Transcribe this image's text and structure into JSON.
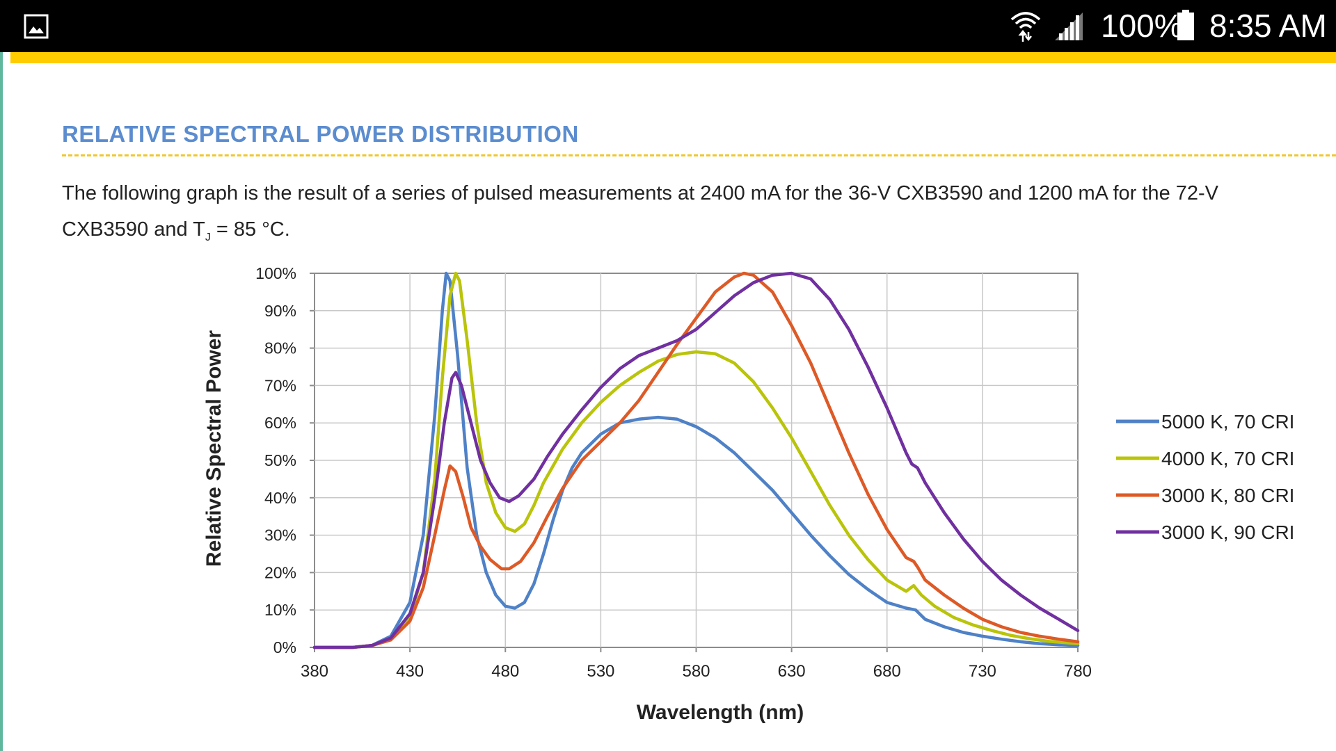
{
  "status_bar": {
    "battery": "100%",
    "time": "8:35 AM",
    "icons": [
      "gallery-icon",
      "wifi-icon",
      "signal-icon",
      "battery-icon"
    ]
  },
  "colors": {
    "accent": "#ffcc00",
    "title": "#5b8ccf",
    "rule": "#f0c62a"
  },
  "section": {
    "title": "RELATIVE SPECTRAL POWER DISTRIBUTION",
    "text_line1": "The following graph is the result of a series of pulsed measurements at 2400 mA for the 36-V CXB3590 and 1200 mA for the 72-V",
    "text_line2_pre": "CXB3590 and T",
    "text_line2_sub": "J",
    "text_line2_post": " = 85 °C."
  },
  "chart_data": {
    "type": "line",
    "xlabel": "Wavelength (nm)",
    "ylabel": "Relative Spectral Power",
    "xlim": [
      380,
      780
    ],
    "ylim": [
      0,
      100
    ],
    "x_ticks": [
      "380",
      "430",
      "480",
      "530",
      "580",
      "630",
      "680",
      "730",
      "780"
    ],
    "y_ticks": [
      "0%",
      "10%",
      "20%",
      "30%",
      "40%",
      "50%",
      "60%",
      "70%",
      "80%",
      "90%",
      "100%"
    ],
    "grid": true,
    "legend_position": "right",
    "series": [
      {
        "name": "5000 K, 70 CRI",
        "color": "#4f81c7",
        "points": [
          [
            380,
            0
          ],
          [
            400,
            0
          ],
          [
            410,
            0.5
          ],
          [
            420,
            3
          ],
          [
            430,
            12
          ],
          [
            437,
            30
          ],
          [
            443,
            62
          ],
          [
            447,
            90
          ],
          [
            449,
            100
          ],
          [
            451,
            98
          ],
          [
            455,
            78
          ],
          [
            460,
            48
          ],
          [
            465,
            30
          ],
          [
            470,
            20
          ],
          [
            475,
            14
          ],
          [
            480,
            11
          ],
          [
            485,
            10.5
          ],
          [
            490,
            12
          ],
          [
            495,
            17
          ],
          [
            500,
            25
          ],
          [
            505,
            34
          ],
          [
            510,
            42
          ],
          [
            515,
            48
          ],
          [
            520,
            52
          ],
          [
            530,
            57
          ],
          [
            540,
            60
          ],
          [
            550,
            61
          ],
          [
            560,
            61.5
          ],
          [
            570,
            61
          ],
          [
            580,
            59
          ],
          [
            590,
            56
          ],
          [
            600,
            52
          ],
          [
            610,
            47
          ],
          [
            620,
            42
          ],
          [
            630,
            36
          ],
          [
            640,
            30
          ],
          [
            650,
            24.5
          ],
          [
            660,
            19.5
          ],
          [
            670,
            15.5
          ],
          [
            680,
            12
          ],
          [
            690,
            10.5
          ],
          [
            695,
            10
          ],
          [
            700,
            7.5
          ],
          [
            710,
            5.5
          ],
          [
            720,
            4
          ],
          [
            730,
            3
          ],
          [
            740,
            2.2
          ],
          [
            750,
            1.5
          ],
          [
            760,
            1
          ],
          [
            770,
            0.7
          ],
          [
            780,
            0.5
          ]
        ]
      },
      {
        "name": "4000 K, 70 CRI",
        "color": "#b9c40a",
        "points": [
          [
            380,
            0
          ],
          [
            400,
            0
          ],
          [
            410,
            0.5
          ],
          [
            420,
            2
          ],
          [
            430,
            8
          ],
          [
            437,
            20
          ],
          [
            443,
            45
          ],
          [
            447,
            72
          ],
          [
            451,
            94
          ],
          [
            454,
            100
          ],
          [
            456,
            98
          ],
          [
            460,
            82
          ],
          [
            465,
            60
          ],
          [
            470,
            44
          ],
          [
            475,
            36
          ],
          [
            480,
            32
          ],
          [
            485,
            31
          ],
          [
            490,
            33
          ],
          [
            495,
            38
          ],
          [
            500,
            44
          ],
          [
            510,
            53
          ],
          [
            520,
            60
          ],
          [
            530,
            65.5
          ],
          [
            540,
            70
          ],
          [
            550,
            73.5
          ],
          [
            560,
            76.5
          ],
          [
            570,
            78.3
          ],
          [
            580,
            79
          ],
          [
            590,
            78.5
          ],
          [
            600,
            76
          ],
          [
            610,
            71
          ],
          [
            620,
            64
          ],
          [
            630,
            56
          ],
          [
            640,
            47
          ],
          [
            650,
            38
          ],
          [
            660,
            30
          ],
          [
            670,
            23.5
          ],
          [
            680,
            18
          ],
          [
            690,
            15
          ],
          [
            694,
            16.5
          ],
          [
            698,
            14
          ],
          [
            705,
            11
          ],
          [
            715,
            8
          ],
          [
            725,
            6
          ],
          [
            735,
            4.5
          ],
          [
            745,
            3.2
          ],
          [
            755,
            2.3
          ],
          [
            765,
            1.6
          ],
          [
            780,
            1
          ]
        ]
      },
      {
        "name": "3000 K, 80 CRI",
        "color": "#dd5a27",
        "points": [
          [
            380,
            0
          ],
          [
            400,
            0
          ],
          [
            410,
            0.5
          ],
          [
            420,
            2
          ],
          [
            430,
            7
          ],
          [
            437,
            16
          ],
          [
            443,
            30
          ],
          [
            448,
            42
          ],
          [
            451,
            48.5
          ],
          [
            454,
            47
          ],
          [
            458,
            40
          ],
          [
            462,
            32
          ],
          [
            467,
            27
          ],
          [
            472,
            23.5
          ],
          [
            478,
            21
          ],
          [
            482,
            21
          ],
          [
            488,
            23
          ],
          [
            495,
            28
          ],
          [
            502,
            35
          ],
          [
            510,
            42.5
          ],
          [
            520,
            50
          ],
          [
            530,
            55
          ],
          [
            540,
            60
          ],
          [
            550,
            66
          ],
          [
            560,
            73.5
          ],
          [
            570,
            81
          ],
          [
            580,
            88
          ],
          [
            590,
            95
          ],
          [
            600,
            99
          ],
          [
            605,
            100
          ],
          [
            610,
            99.5
          ],
          [
            620,
            95
          ],
          [
            630,
            86
          ],
          [
            640,
            76
          ],
          [
            650,
            64
          ],
          [
            660,
            52
          ],
          [
            670,
            41
          ],
          [
            680,
            31.5
          ],
          [
            690,
            24
          ],
          [
            694,
            23
          ],
          [
            696,
            21.5
          ],
          [
            700,
            18
          ],
          [
            710,
            14
          ],
          [
            720,
            10.5
          ],
          [
            730,
            7.5
          ],
          [
            740,
            5.5
          ],
          [
            750,
            4
          ],
          [
            760,
            3
          ],
          [
            770,
            2.2
          ],
          [
            780,
            1.5
          ]
        ]
      },
      {
        "name": "3000 K, 90 CRI",
        "color": "#7030a0",
        "points": [
          [
            380,
            0
          ],
          [
            400,
            0
          ],
          [
            410,
            0.5
          ],
          [
            420,
            2.5
          ],
          [
            430,
            9
          ],
          [
            437,
            20
          ],
          [
            443,
            40
          ],
          [
            448,
            60
          ],
          [
            452,
            72
          ],
          [
            454,
            73.5
          ],
          [
            457,
            70
          ],
          [
            462,
            60
          ],
          [
            467,
            50
          ],
          [
            472,
            44
          ],
          [
            477,
            40
          ],
          [
            482,
            39
          ],
          [
            487,
            40.5
          ],
          [
            495,
            45
          ],
          [
            502,
            51
          ],
          [
            510,
            57
          ],
          [
            520,
            63.5
          ],
          [
            530,
            69.5
          ],
          [
            540,
            74.5
          ],
          [
            550,
            78
          ],
          [
            560,
            80
          ],
          [
            570,
            82
          ],
          [
            580,
            85
          ],
          [
            590,
            89.5
          ],
          [
            600,
            94
          ],
          [
            610,
            97.5
          ],
          [
            620,
            99.5
          ],
          [
            630,
            100
          ],
          [
            640,
            98.5
          ],
          [
            650,
            93
          ],
          [
            660,
            85
          ],
          [
            670,
            75
          ],
          [
            680,
            64
          ],
          [
            690,
            52
          ],
          [
            693,
            49
          ],
          [
            696,
            48
          ],
          [
            700,
            44
          ],
          [
            710,
            36
          ],
          [
            720,
            29
          ],
          [
            730,
            23
          ],
          [
            740,
            18
          ],
          [
            750,
            14
          ],
          [
            760,
            10.5
          ],
          [
            770,
            7.5
          ],
          [
            780,
            4.5
          ]
        ]
      }
    ]
  }
}
